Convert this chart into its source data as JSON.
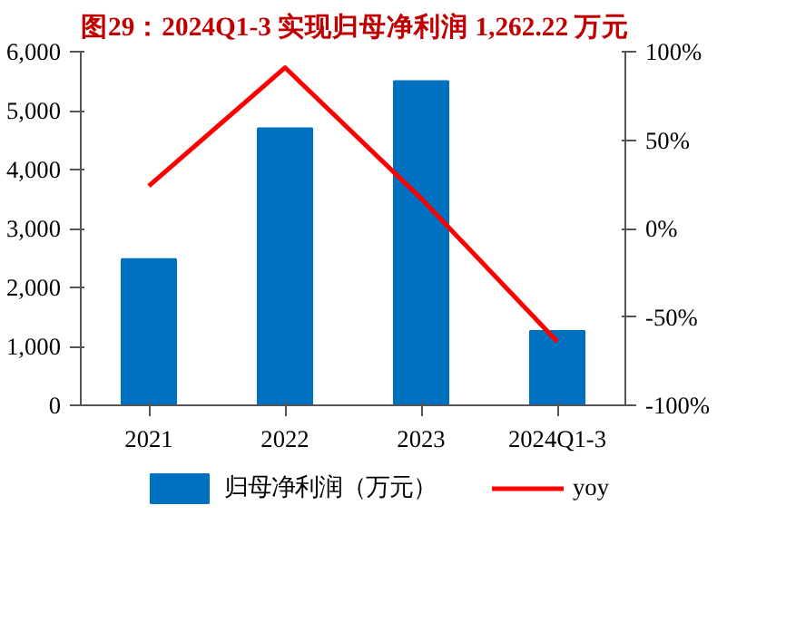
{
  "chart_data": {
    "type": "bar",
    "title": "图29：2024Q1-3 实现归母净利润 1,262.22 万元",
    "categories": [
      "2021",
      "2022",
      "2023",
      "2024Q1-3"
    ],
    "series": [
      {
        "name": "归母净利润（万元）",
        "color": "#0070c0",
        "values": [
          2480,
          4700,
          5500,
          1262
        ]
      },
      {
        "name": "yoy",
        "type": "line",
        "axis": "y2",
        "color": "#ff0000",
        "values": [
          24,
          91,
          17,
          -64
        ]
      }
    ],
    "ylim": [
      0,
      6000
    ],
    "yticks": [
      0,
      {
        "value": 1000,
        "label": "1,000"
      },
      {
        "value": 2000,
        "label": "2,000"
      },
      {
        "value": 3000,
        "label": "3,000"
      },
      {
        "value": 4000,
        "label": "4,000"
      },
      {
        "value": 5000,
        "label": "5,000"
      },
      {
        "value": 6000,
        "label": "6,000"
      }
    ],
    "y2lim": [
      -100,
      100
    ],
    "y2ticks": [
      {
        "value": -100,
        "label": "-100%"
      },
      {
        "value": -50,
        "label": "-50%"
      },
      {
        "value": 0,
        "label": "0%"
      },
      {
        "value": 50,
        "label": "50%"
      },
      {
        "value": 100,
        "label": "100%"
      }
    ],
    "grid": false,
    "legend": "bottom",
    "marker": "none",
    "line_style": "solid"
  }
}
